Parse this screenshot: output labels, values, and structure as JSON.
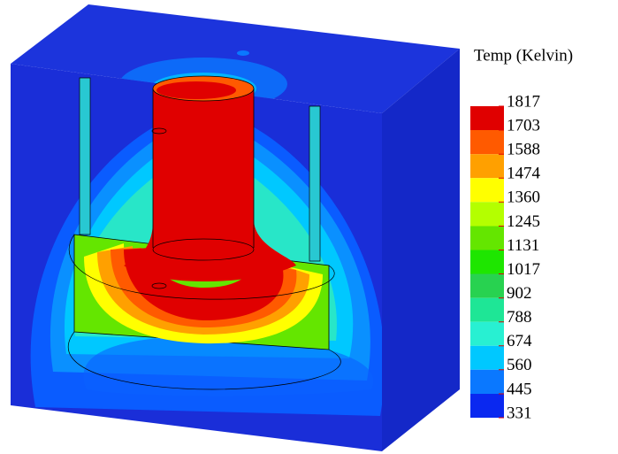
{
  "chart_data": {
    "type": "contour",
    "title": "Temp (Kelvin)",
    "levels": [
      1817,
      1703,
      1588,
      1474,
      1360,
      1245,
      1131,
      1017,
      902,
      788,
      674,
      560,
      445,
      331
    ],
    "colors": [
      "#e00000",
      "#ff5a00",
      "#ffa000",
      "#ffff00",
      "#b4ff00",
      "#64e600",
      "#1ee600",
      "#28d250",
      "#1ee696",
      "#28f0d2",
      "#00c8ff",
      "#0a78ff",
      "#0a28f0"
    ]
  }
}
